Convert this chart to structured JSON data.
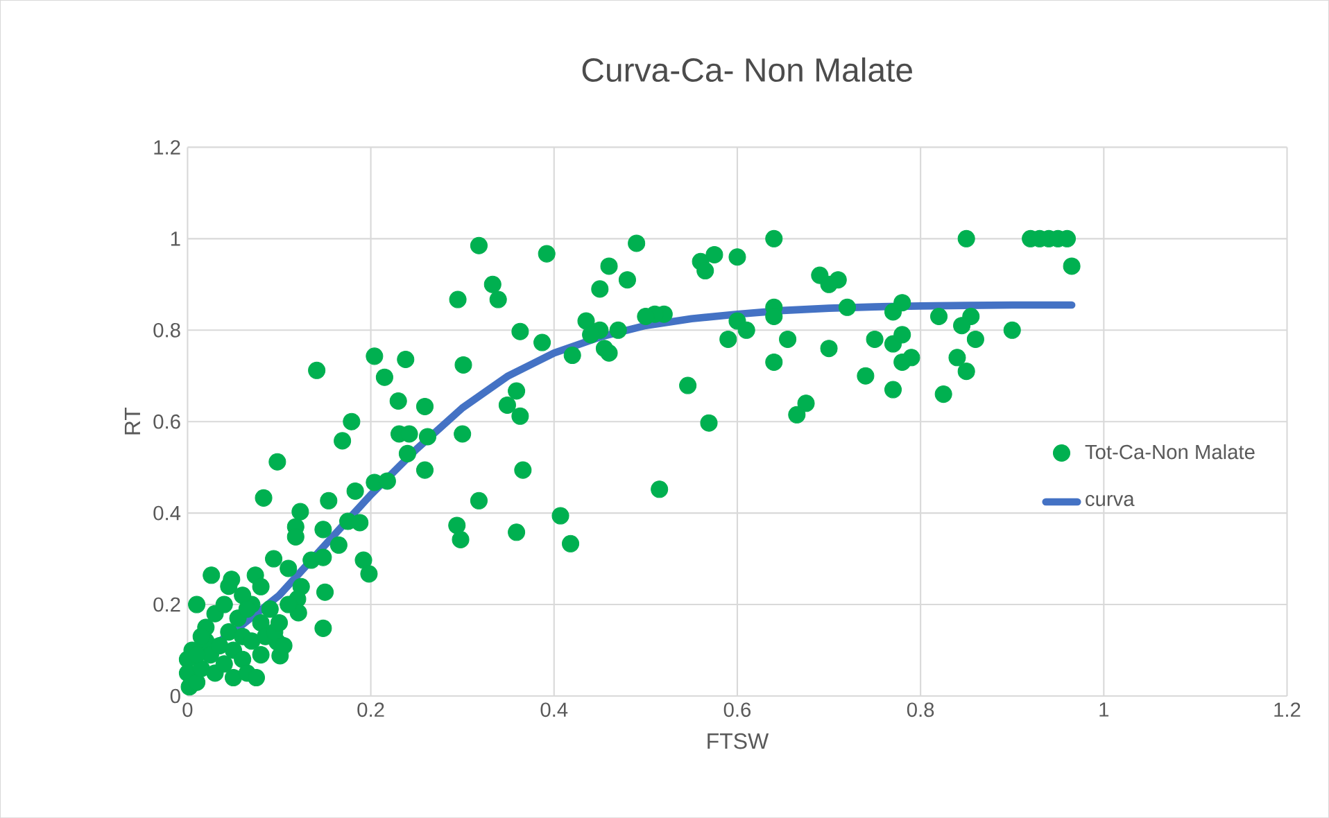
{
  "chart_data": {
    "type": "scatter",
    "title": "Curva-Ca- Non Malate",
    "xlabel": "FTSW",
    "ylabel": "RT",
    "xlim": [
      0,
      1.2
    ],
    "ylim": [
      0,
      1.2
    ],
    "xticks": [
      0,
      0.2,
      0.4,
      0.6,
      0.8,
      1,
      1.2
    ],
    "yticks": [
      0,
      0.2,
      0.4,
      0.6,
      0.8,
      1,
      1.2
    ],
    "grid": true,
    "legend": "right",
    "series": [
      {
        "name": "Tot-Ca-Non Malate",
        "color": "#00b050",
        "marker": "circle",
        "x": [
          0.92,
          0.93,
          0.94,
          0.95,
          0.96,
          0.965,
          0.85,
          0.64,
          0.49,
          0.318,
          0.392,
          0.46,
          0.56,
          0.575,
          0.6,
          0.565,
          0.48,
          0.45,
          0.333,
          0.339,
          0.295,
          0.69,
          0.71,
          0.7,
          0.64,
          0.64,
          0.72,
          0.77,
          0.78,
          0.82,
          0.855,
          0.6,
          0.61,
          0.52,
          0.51,
          0.5,
          0.435,
          0.45,
          0.44,
          0.47,
          0.455,
          0.46,
          0.42,
          0.363,
          0.387,
          0.59,
          0.655,
          0.75,
          0.77,
          0.78,
          0.79,
          0.7,
          0.64,
          0.74,
          0.78,
          0.845,
          0.86,
          0.84,
          0.85,
          0.9,
          0.77,
          0.825,
          0.546,
          0.569,
          0.675,
          0.665,
          0.515,
          0.359,
          0.349,
          0.363,
          0.366,
          0.359,
          0.407,
          0.418,
          0.318,
          0.301,
          0.3,
          0.294,
          0.298,
          0.204,
          0.238,
          0.141,
          0.215,
          0.23,
          0.259,
          0.179,
          0.169,
          0.231,
          0.242,
          0.24,
          0.262,
          0.259,
          0.098,
          0.083,
          0.154,
          0.183,
          0.204,
          0.218,
          0.123,
          0.118,
          0.118,
          0.148,
          0.165,
          0.175,
          0.188,
          0.094,
          0.11,
          0.135,
          0.148,
          0.192,
          0.198,
          0.026,
          0.048,
          0.074,
          0.08,
          0.124,
          0.15,
          0.12,
          0.121,
          0.148,
          0.098,
          0.101,
          0.01,
          0.005,
          0.0,
          0.0,
          0.002,
          0.01,
          0.015,
          0.02,
          0.02,
          0.025,
          0.03,
          0.03,
          0.035,
          0.04,
          0.04,
          0.045,
          0.05,
          0.05,
          0.055,
          0.06,
          0.06,
          0.065,
          0.07,
          0.07,
          0.075,
          0.08,
          0.08,
          0.085,
          0.09,
          0.095,
          0.1,
          0.105,
          0.11,
          0.06,
          0.045,
          0.065,
          0.015,
          0.01
        ],
        "values": [
          1.0,
          1.0,
          1.0,
          1.0,
          1.0,
          0.94,
          1.0,
          1.0,
          0.99,
          0.985,
          0.967,
          0.94,
          0.95,
          0.965,
          0.96,
          0.93,
          0.91,
          0.89,
          0.9,
          0.867,
          0.867,
          0.92,
          0.91,
          0.9,
          0.85,
          0.83,
          0.85,
          0.84,
          0.86,
          0.83,
          0.83,
          0.82,
          0.8,
          0.835,
          0.835,
          0.83,
          0.82,
          0.8,
          0.79,
          0.8,
          0.76,
          0.75,
          0.745,
          0.797,
          0.773,
          0.78,
          0.78,
          0.78,
          0.77,
          0.79,
          0.74,
          0.76,
          0.73,
          0.7,
          0.73,
          0.81,
          0.78,
          0.74,
          0.71,
          0.8,
          0.67,
          0.66,
          0.679,
          0.597,
          0.64,
          0.615,
          0.452,
          0.667,
          0.636,
          0.612,
          0.494,
          0.358,
          0.394,
          0.333,
          0.427,
          0.724,
          0.573,
          0.373,
          0.342,
          0.743,
          0.736,
          0.712,
          0.697,
          0.645,
          0.633,
          0.6,
          0.558,
          0.573,
          0.573,
          0.53,
          0.567,
          0.494,
          0.512,
          0.433,
          0.427,
          0.448,
          0.467,
          0.47,
          0.403,
          0.37,
          0.348,
          0.364,
          0.33,
          0.382,
          0.379,
          0.3,
          0.279,
          0.297,
          0.303,
          0.297,
          0.267,
          0.264,
          0.255,
          0.264,
          0.239,
          0.239,
          0.227,
          0.212,
          0.182,
          0.148,
          0.118,
          0.088,
          0.2,
          0.1,
          0.08,
          0.05,
          0.02,
          0.03,
          0.06,
          0.12,
          0.15,
          0.09,
          0.05,
          0.18,
          0.11,
          0.2,
          0.07,
          0.14,
          0.04,
          0.1,
          0.17,
          0.08,
          0.13,
          0.05,
          0.12,
          0.2,
          0.04,
          0.09,
          0.16,
          0.13,
          0.19,
          0.14,
          0.16,
          0.11,
          0.2,
          0.22,
          0.24,
          0.19,
          0.13,
          0.09
        ]
      },
      {
        "name": "curva",
        "type": "line",
        "color": "#4472c4",
        "line_style": "solid",
        "marker": "none",
        "x": [
          0.02,
          0.05,
          0.1,
          0.15,
          0.2,
          0.25,
          0.3,
          0.35,
          0.4,
          0.45,
          0.5,
          0.55,
          0.6,
          0.65,
          0.7,
          0.75,
          0.8,
          0.85,
          0.9,
          0.965
        ],
        "values": [
          0.1,
          0.14,
          0.22,
          0.33,
          0.44,
          0.54,
          0.63,
          0.7,
          0.75,
          0.785,
          0.81,
          0.825,
          0.835,
          0.843,
          0.848,
          0.851,
          0.853,
          0.854,
          0.855,
          0.855
        ]
      }
    ]
  }
}
